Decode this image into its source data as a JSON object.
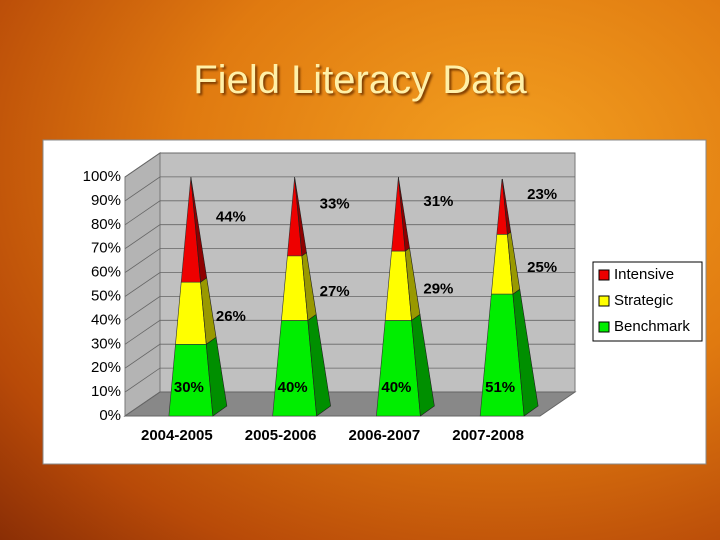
{
  "chart_data": {
    "type": "pyramid-stacked",
    "title": "Field Literacy Data",
    "categories": [
      "2004-2005",
      "2005-2006",
      "2006-2007",
      "2007-2008"
    ],
    "series": [
      {
        "name": "Benchmark",
        "color": "#00ee00",
        "values": [
          30,
          40,
          40,
          51
        ],
        "value_labels": [
          "30%",
          "40%",
          "40%",
          "51%"
        ]
      },
      {
        "name": "Strategic",
        "color": "#ffff00",
        "values": [
          26,
          27,
          29,
          25
        ],
        "value_labels": [
          "26%",
          "27%",
          "29%",
          "25%"
        ]
      },
      {
        "name": "Intensive",
        "color": "#ee0000",
        "values": [
          44,
          33,
          31,
          23
        ],
        "value_labels": [
          "44%",
          "33%",
          "31%",
          "23%"
        ]
      }
    ],
    "ylim": [
      0,
      100
    ],
    "yticks": [
      {
        "value": 0,
        "label": "0%"
      },
      {
        "value": 10,
        "label": "10%"
      },
      {
        "value": 20,
        "label": "20%"
      },
      {
        "value": 30,
        "label": "30%"
      },
      {
        "value": 40,
        "label": "40%"
      },
      {
        "value": 50,
        "label": "50%"
      },
      {
        "value": 60,
        "label": "60%"
      },
      {
        "value": 70,
        "label": "70%"
      },
      {
        "value": 80,
        "label": "80%"
      },
      {
        "value": 90,
        "label": "90%"
      },
      {
        "value": 100,
        "label": "100%"
      }
    ],
    "grid": true
  }
}
